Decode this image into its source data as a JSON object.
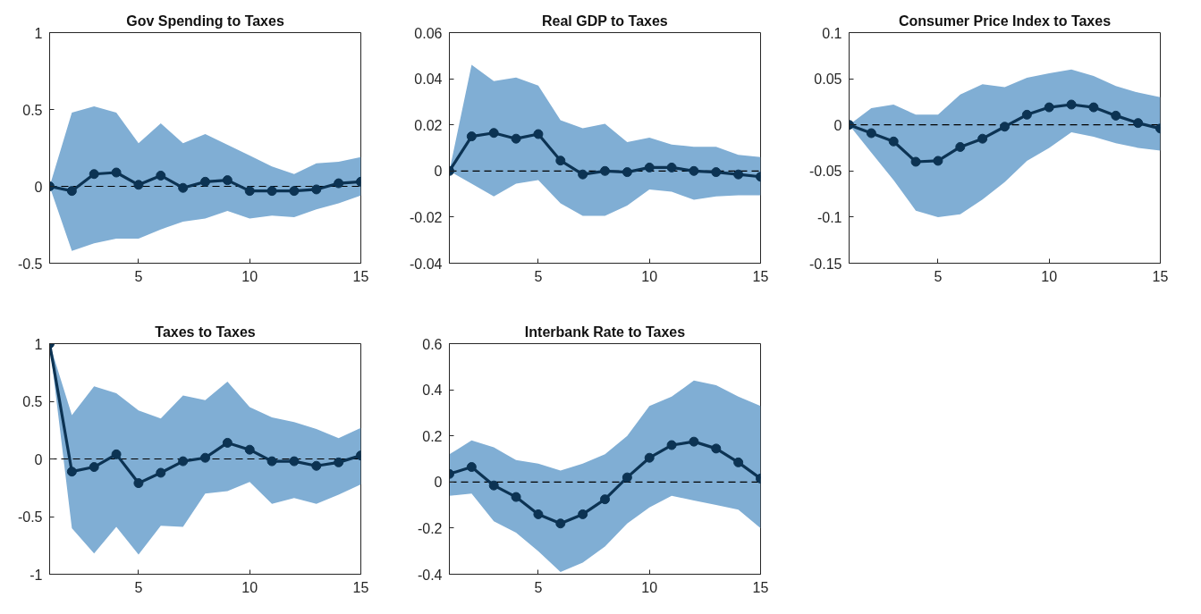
{
  "chart_data": [
    {
      "type": "line",
      "title": "Gov Spending to Taxes",
      "x": [
        1,
        2,
        3,
        4,
        5,
        6,
        7,
        8,
        9,
        10,
        11,
        12,
        13,
        14,
        15
      ],
      "marker": "circle",
      "xlim": [
        1,
        15
      ],
      "xticks": [
        5,
        10,
        15
      ],
      "ylim": [
        -0.5,
        1
      ],
      "yticks": [
        -0.5,
        0,
        0.5,
        1
      ],
      "ref_lines": [
        {
          "axis": "y",
          "value": 0,
          "color": "#000000",
          "line_style": "dashed"
        }
      ],
      "series": [
        {
          "color": "#0c3353",
          "values": [
            0,
            -0.03,
            0.08,
            0.09,
            0.01,
            0.07,
            -0.01,
            0.03,
            0.04,
            -0.03,
            -0.03,
            -0.03,
            -0.02,
            0.02,
            0.03
          ],
          "upper": [
            0,
            0.48,
            0.52,
            0.48,
            0.28,
            0.41,
            0.28,
            0.34,
            0.27,
            0.2,
            0.13,
            0.08,
            0.15,
            0.16,
            0.19
          ],
          "lower": [
            0,
            -0.42,
            -0.37,
            -0.34,
            -0.34,
            -0.28,
            -0.23,
            -0.21,
            -0.16,
            -0.21,
            -0.19,
            -0.2,
            -0.15,
            -0.11,
            -0.06
          ]
        }
      ]
    },
    {
      "type": "line",
      "title": "Real GDP to Taxes",
      "x": [
        1,
        2,
        3,
        4,
        5,
        6,
        7,
        8,
        9,
        10,
        11,
        12,
        13,
        14,
        15
      ],
      "marker": "circle",
      "xlim": [
        1,
        15
      ],
      "xticks": [
        5,
        10,
        15
      ],
      "ylim": [
        -0.04,
        0.06
      ],
      "yticks": [
        -0.04,
        -0.02,
        0,
        0.02,
        0.04,
        0.06
      ],
      "ref_lines": [
        {
          "axis": "y",
          "value": 0,
          "color": "#000000",
          "line_style": "dashed"
        }
      ],
      "series": [
        {
          "color": "#0c3353",
          "values": [
            0,
            0.015,
            0.0165,
            0.014,
            0.016,
            0.0045,
            -0.0015,
            0,
            -0.0005,
            0.0015,
            0.0015,
            0,
            -0.0005,
            -0.0015,
            -0.0025
          ],
          "upper": [
            0,
            0.046,
            0.039,
            0.0405,
            0.037,
            0.022,
            0.0185,
            0.0205,
            0.0125,
            0.0145,
            0.0115,
            0.0105,
            0.0105,
            0.007,
            0.006
          ],
          "lower": [
            0,
            -0.0055,
            -0.011,
            -0.0055,
            -0.004,
            -0.014,
            -0.0195,
            -0.0195,
            -0.015,
            -0.008,
            -0.009,
            -0.0125,
            -0.011,
            -0.0105,
            -0.0105
          ]
        }
      ]
    },
    {
      "type": "line",
      "title": "Consumer Price Index to Taxes",
      "x": [
        1,
        2,
        3,
        4,
        5,
        6,
        7,
        8,
        9,
        10,
        11,
        12,
        13,
        14,
        15
      ],
      "marker": "circle",
      "xlim": [
        1,
        15
      ],
      "xticks": [
        5,
        10,
        15
      ],
      "ylim": [
        -0.15,
        0.1
      ],
      "yticks": [
        -0.15,
        -0.1,
        -0.05,
        0,
        0.05,
        0.1
      ],
      "ref_lines": [
        {
          "axis": "y",
          "value": 0,
          "color": "#000000",
          "line_style": "dashed"
        }
      ],
      "series": [
        {
          "color": "#0c3353",
          "values": [
            0,
            -0.009,
            -0.018,
            -0.04,
            -0.039,
            -0.024,
            -0.015,
            -0.002,
            0.011,
            0.019,
            0.022,
            0.019,
            0.01,
            0.002,
            -0.004
          ],
          "upper": [
            0,
            0.018,
            0.022,
            0.011,
            0.011,
            0.033,
            0.044,
            0.041,
            0.051,
            0.056,
            0.06,
            0.053,
            0.042,
            0.035,
            0.03
          ],
          "lower": [
            0,
            -0.03,
            -0.06,
            -0.093,
            -0.1,
            -0.097,
            -0.081,
            -0.062,
            -0.039,
            -0.025,
            -0.008,
            -0.013,
            -0.02,
            -0.025,
            -0.028
          ]
        }
      ]
    },
    {
      "type": "line",
      "title": "Taxes to Taxes",
      "x": [
        1,
        2,
        3,
        4,
        5,
        6,
        7,
        8,
        9,
        10,
        11,
        12,
        13,
        14,
        15
      ],
      "marker": "circle",
      "xlim": [
        1,
        15
      ],
      "xticks": [
        5,
        10,
        15
      ],
      "ylim": [
        -1,
        1
      ],
      "yticks": [
        -1,
        -0.5,
        0,
        0.5,
        1
      ],
      "ref_lines": [
        {
          "axis": "y",
          "value": 0,
          "color": "#000000",
          "line_style": "dashed"
        }
      ],
      "series": [
        {
          "color": "#0c3353",
          "values": [
            1,
            -0.11,
            -0.07,
            0.04,
            -0.21,
            -0.12,
            -0.02,
            0.01,
            0.14,
            0.08,
            -0.02,
            -0.02,
            -0.06,
            -0.03,
            0.03
          ],
          "upper": [
            1,
            0.38,
            0.63,
            0.57,
            0.42,
            0.35,
            0.55,
            0.51,
            0.67,
            0.45,
            0.36,
            0.32,
            0.26,
            0.18,
            0.27
          ],
          "lower": [
            1,
            -0.6,
            -0.82,
            -0.59,
            -0.83,
            -0.58,
            -0.59,
            -0.3,
            -0.28,
            -0.2,
            -0.39,
            -0.34,
            -0.39,
            -0.31,
            -0.22
          ]
        }
      ]
    },
    {
      "type": "line",
      "title": "Interbank Rate to Taxes",
      "x": [
        1,
        2,
        3,
        4,
        5,
        6,
        7,
        8,
        9,
        10,
        11,
        12,
        13,
        14,
        15
      ],
      "marker": "circle",
      "xlim": [
        1,
        15
      ],
      "xticks": [
        5,
        10,
        15
      ],
      "ylim": [
        -0.4,
        0.6
      ],
      "yticks": [
        -0.4,
        -0.2,
        0,
        0.2,
        0.4,
        0.6
      ],
      "ref_lines": [
        {
          "axis": "y",
          "value": 0,
          "color": "#000000",
          "line_style": "dashed"
        }
      ],
      "series": [
        {
          "color": "#0c3353",
          "values": [
            0.035,
            0.065,
            -0.015,
            -0.065,
            -0.14,
            -0.18,
            -0.14,
            -0.075,
            0.02,
            0.105,
            0.16,
            0.175,
            0.145,
            0.085,
            0.015
          ],
          "upper": [
            0.12,
            0.18,
            0.15,
            0.095,
            0.08,
            0.05,
            0.08,
            0.12,
            0.2,
            0.33,
            0.37,
            0.44,
            0.42,
            0.37,
            0.33
          ],
          "lower": [
            -0.06,
            -0.05,
            -0.17,
            -0.22,
            -0.3,
            -0.39,
            -0.35,
            -0.28,
            -0.18,
            -0.11,
            -0.06,
            -0.08,
            -0.1,
            -0.12,
            -0.2
          ]
        }
      ]
    }
  ]
}
